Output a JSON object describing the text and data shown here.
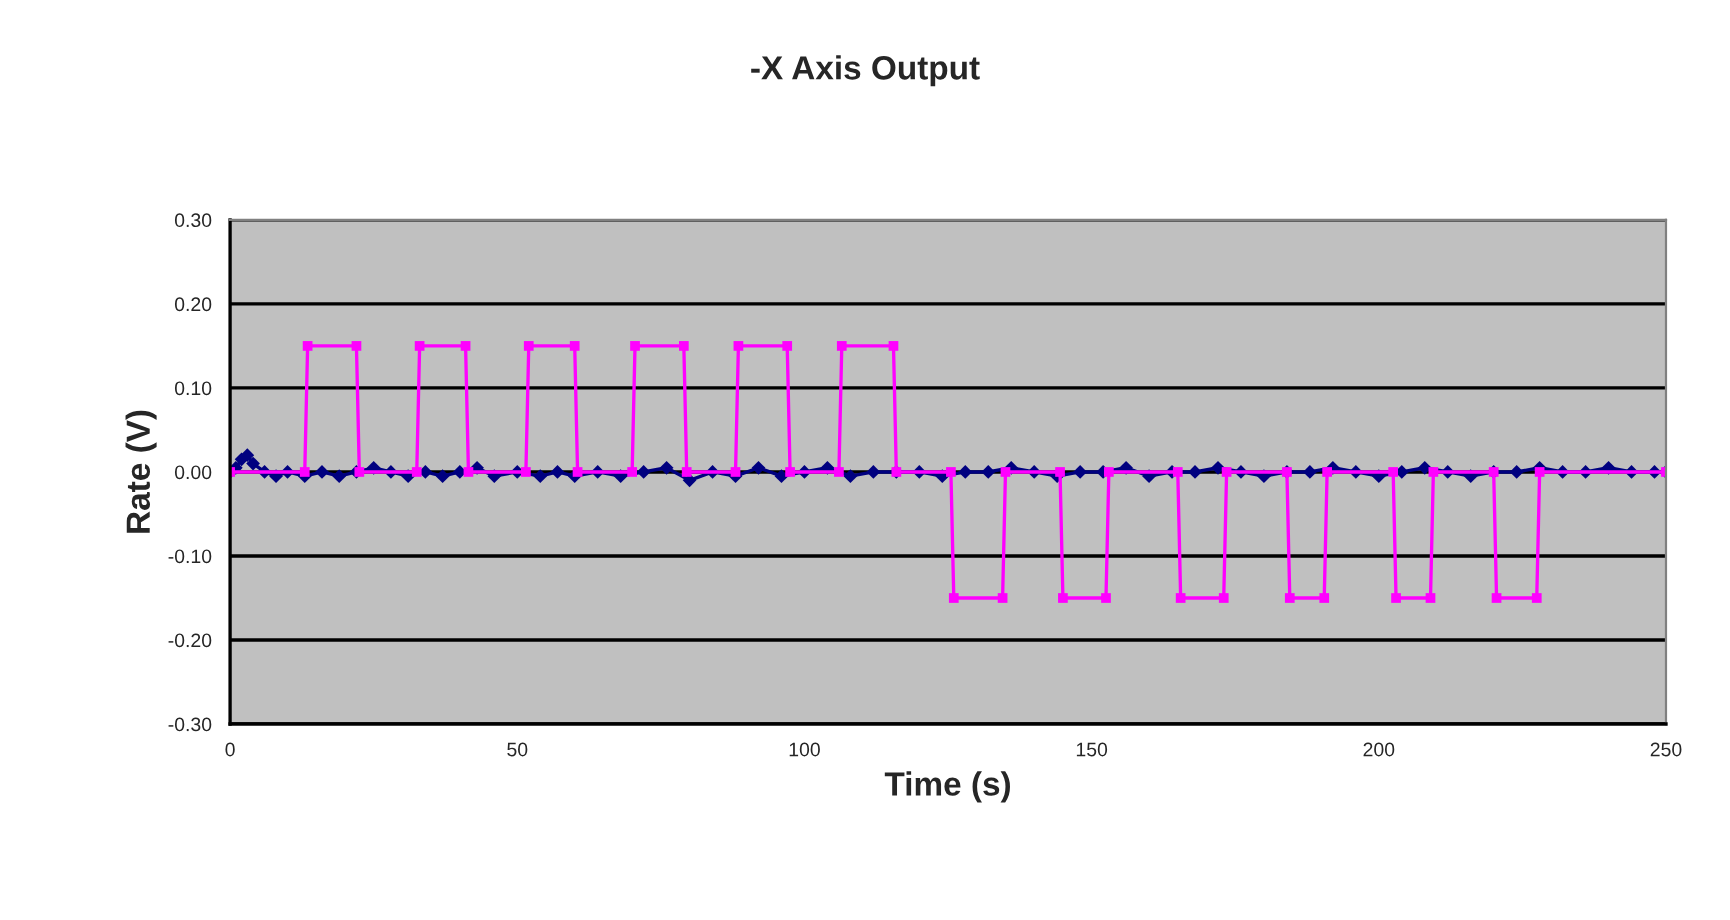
{
  "chart_data": {
    "type": "line",
    "title": "-X Axis Output",
    "xlabel": "Time (s)",
    "ylabel": "Rate (V)",
    "xlim": [
      0,
      250
    ],
    "xticks": [
      0,
      50,
      100,
      150,
      200,
      250
    ],
    "ylim": [
      -0.3,
      0.3
    ],
    "yticks": [
      {
        "value": -0.3,
        "label": "-0.30"
      },
      {
        "value": -0.2,
        "label": "-0.20"
      },
      {
        "value": -0.1,
        "label": "-0.10"
      },
      {
        "value": 0,
        "label": "0.00"
      },
      {
        "value": 0.1,
        "label": "0.10"
      },
      {
        "value": 0.2,
        "label": "0.20"
      },
      {
        "value": 0.3,
        "label": "0.30"
      }
    ],
    "grid": "y",
    "legend": false,
    "series": [
      {
        "color": "#000080",
        "marker": "diamond",
        "x": [
          0,
          1,
          2,
          3,
          4,
          6,
          8,
          10,
          13,
          16,
          19,
          22,
          25,
          28,
          31,
          34,
          37,
          40,
          43,
          46,
          50,
          54,
          57,
          60,
          64,
          68,
          72,
          76,
          80,
          84,
          88,
          92,
          96,
          100,
          104,
          108,
          112,
          116,
          120,
          124,
          128,
          132,
          136,
          140,
          144,
          148,
          152,
          156,
          160,
          164,
          168,
          172,
          176,
          180,
          184,
          188,
          192,
          196,
          200,
          204,
          208,
          212,
          216,
          220,
          224,
          228,
          232,
          236,
          240,
          244,
          248,
          250
        ],
        "values": [
          0,
          0.005,
          0.015,
          0.02,
          0.01,
          0,
          -0.005,
          0,
          -0.005,
          0,
          -0.005,
          0,
          0.005,
          0,
          -0.005,
          0,
          -0.005,
          0,
          0.005,
          -0.005,
          0,
          -0.005,
          0,
          -0.005,
          0,
          -0.005,
          0,
          0.005,
          -0.01,
          0,
          -0.005,
          0.005,
          -0.005,
          0,
          0.005,
          -0.005,
          0,
          0,
          0,
          -0.005,
          0,
          0,
          0.005,
          0,
          -0.005,
          0,
          0,
          0.005,
          -0.005,
          0,
          0,
          0.005,
          0,
          -0.005,
          0,
          0,
          0.005,
          0,
          -0.005,
          0,
          0.005,
          0,
          -0.005,
          0,
          0,
          0.005,
          0,
          0,
          0.005,
          0,
          0,
          0
        ]
      },
      {
        "color": "#ff00ff",
        "marker": "square",
        "x": [
          0,
          13,
          13.5,
          22,
          22.5,
          32.5,
          33,
          41,
          41.5,
          51.5,
          52,
          60,
          60.5,
          70,
          70.5,
          79,
          79.5,
          88,
          88.5,
          97,
          97.5,
          106,
          106.5,
          115.5,
          116,
          125.5,
          126,
          134.5,
          135,
          144.5,
          145,
          152.5,
          153,
          165,
          165.5,
          173,
          173.5,
          184,
          184.5,
          190.5,
          191,
          202.5,
          203,
          209,
          209.5,
          220,
          220.5,
          227.5,
          228,
          250
        ],
        "values": [
          0,
          0,
          0.15,
          0.15,
          0,
          0,
          0.15,
          0.15,
          0,
          0,
          0.15,
          0.15,
          0,
          0,
          0.15,
          0.15,
          0,
          0,
          0.15,
          0.15,
          0,
          0,
          0.15,
          0.15,
          0,
          0,
          -0.15,
          -0.15,
          0,
          0,
          -0.15,
          -0.15,
          0,
          0,
          -0.15,
          -0.15,
          0,
          0,
          -0.15,
          -0.15,
          0,
          0,
          -0.15,
          -0.15,
          0,
          0,
          -0.15,
          -0.15,
          0,
          0
        ]
      }
    ]
  }
}
